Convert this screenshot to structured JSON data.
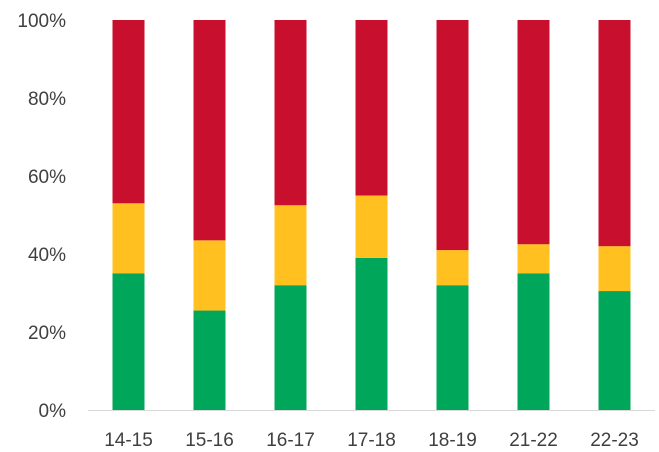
{
  "chart_data": {
    "type": "bar",
    "stacked": true,
    "percent_stacked": true,
    "title": "",
    "xlabel": "",
    "ylabel": "",
    "categories": [
      "14-15",
      "15-16",
      "16-17",
      "17-18",
      "18-19",
      "21-22",
      "22-23"
    ],
    "series": [
      {
        "color": "#00a65a",
        "values": [
          35,
          25.5,
          32,
          39,
          32,
          35,
          30.5
        ]
      },
      {
        "color": "#ffc020",
        "values": [
          18,
          18,
          20.5,
          16,
          9,
          7.5,
          11.5
        ]
      },
      {
        "color": "#c8102e",
        "values": [
          47,
          56.5,
          47.5,
          45,
          59,
          57.5,
          58
        ]
      }
    ],
    "ylim": [
      0,
      100
    ],
    "yticks": [
      0,
      20,
      40,
      60,
      80,
      100
    ],
    "ytick_labels": [
      "0%",
      "20%",
      "40%",
      "60%",
      "80%",
      "100%"
    ],
    "grid": false,
    "legend": "none"
  }
}
